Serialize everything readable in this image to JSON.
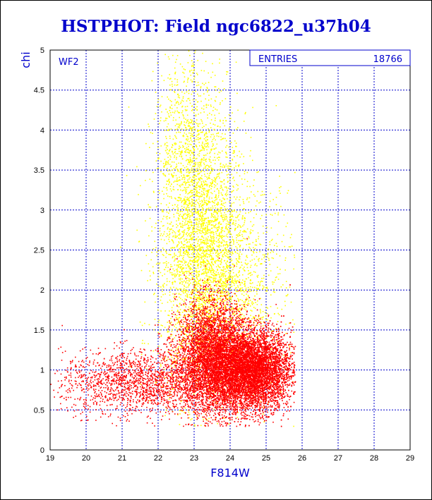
{
  "chart_data": {
    "type": "scatter",
    "title": "HSTPHOT: Field ngc6822_u37h04",
    "xlabel": "F814W",
    "ylabel": "chi",
    "xlim": [
      19,
      29
    ],
    "ylim": [
      0,
      5
    ],
    "xticks": [
      "19",
      "20",
      "21",
      "22",
      "23",
      "24",
      "25",
      "26",
      "27",
      "28",
      "29"
    ],
    "yticks": [
      "0",
      "0.5",
      "1",
      "1.5",
      "2",
      "2.5",
      "3",
      "3.5",
      "4",
      "4.5",
      "5"
    ],
    "grid": true,
    "panel_label": "WF2",
    "stats_box": {
      "label": "ENTRIES",
      "value": "18766"
    },
    "series": [
      {
        "color": "#ffff00",
        "clusters": [
          {
            "x_mean": 23.2,
            "x_sd": 0.6,
            "y_mean": 2.4,
            "y_sd": 0.9,
            "count": 3500
          },
          {
            "x_mean": 22.8,
            "x_sd": 0.45,
            "y_mean": 3.9,
            "y_sd": 0.6,
            "count": 600
          },
          {
            "x_mean": 24.3,
            "x_sd": 0.8,
            "y_mean": 2.0,
            "y_sd": 0.7,
            "count": 900
          }
        ]
      },
      {
        "color": "#ff0000",
        "clusters": [
          {
            "x_mean": 24.6,
            "x_sd": 0.55,
            "y_mean": 1.0,
            "y_sd": 0.25,
            "count": 7500
          },
          {
            "x_mean": 23.5,
            "x_sd": 0.5,
            "y_mean": 1.15,
            "y_sd": 0.35,
            "count": 4500
          },
          {
            "x_mean": 21.5,
            "x_sd": 1.1,
            "y_mean": 0.85,
            "y_sd": 0.2,
            "count": 1800
          }
        ]
      }
    ]
  },
  "colors": {
    "title": "#0000cc",
    "grid": "#0000cc",
    "axis_title": "#0000cc"
  }
}
